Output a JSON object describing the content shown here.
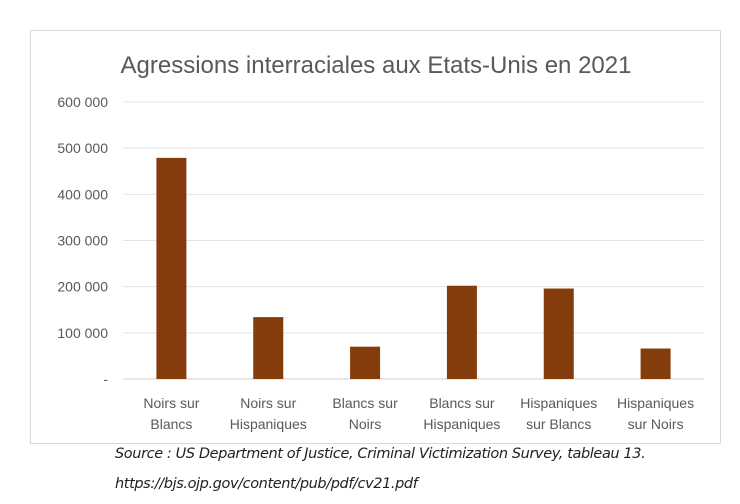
{
  "chart_data": {
    "type": "bar",
    "title": "Agressions interraciales aux Etats-Unis en 2021",
    "categories": [
      [
        "Noirs sur",
        "Blancs"
      ],
      [
        "Noirs sur",
        "Hispaniques"
      ],
      [
        "Blancs sur",
        "Noirs"
      ],
      [
        "Blancs sur",
        "Hispaniques"
      ],
      [
        "Hispaniques",
        "sur Blancs"
      ],
      [
        "Hispaniques",
        "sur Noirs"
      ]
    ],
    "values": [
      479000,
      134000,
      70000,
      202000,
      196000,
      66000
    ],
    "ylim": [
      0,
      600000
    ],
    "yticks": [
      0,
      100000,
      200000,
      300000,
      400000,
      500000,
      600000
    ],
    "ytick_labels": [
      "-",
      "100 000",
      "200 000",
      "300 000",
      "400 000",
      "500 000",
      "600 000"
    ],
    "xlabel": "",
    "ylabel": "",
    "grid": true,
    "legend": "none",
    "bar_color": "#843C0C"
  },
  "source": {
    "line1": "Source : US Department of Justice, Criminal Victimization Survey, tableau 13.",
    "line2": "https://bjs.ojp.gov/content/pub/pdf/cv21.pdf"
  }
}
